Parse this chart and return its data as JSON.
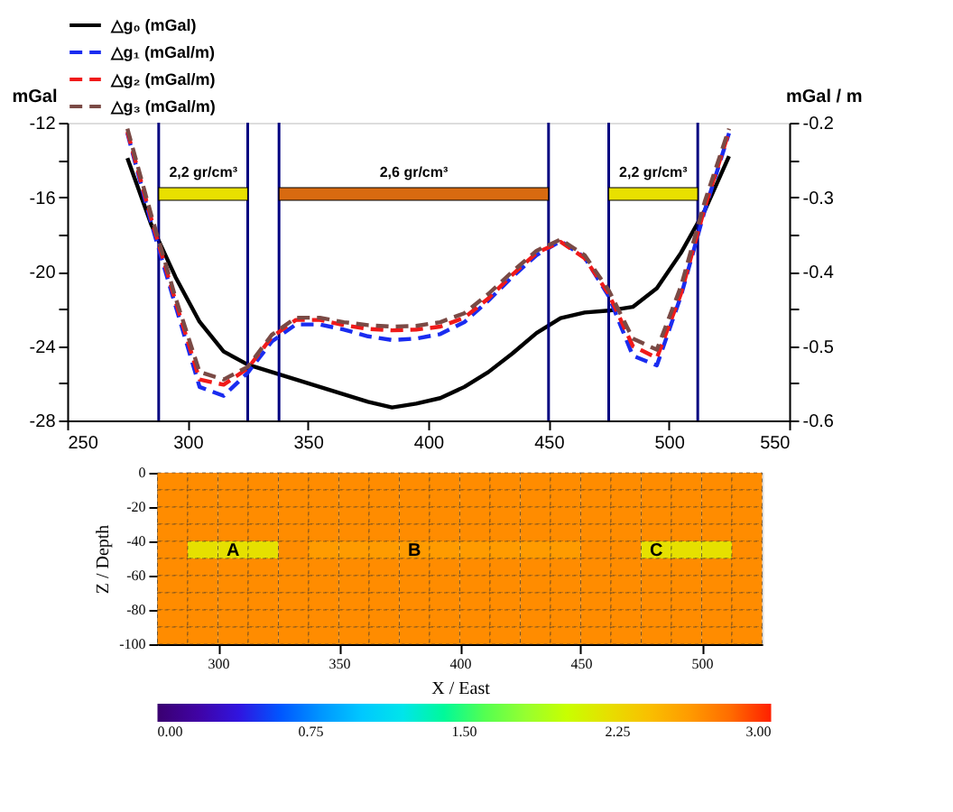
{
  "chart_data": [
    {
      "type": "line",
      "ylabel": "mGal",
      "y2label": "mGal / m",
      "legend": "top",
      "grid": false,
      "xlim": [
        250,
        550
      ],
      "xticks": [
        250,
        300,
        350,
        400,
        450,
        500,
        550
      ],
      "ylim": [
        -28,
        -12
      ],
      "yticks": [
        -28,
        {
          "value": -26,
          "label": null
        },
        -24,
        {
          "value": -22,
          "label": null
        },
        -20,
        {
          "value": -18,
          "label": null
        },
        -16,
        {
          "value": -14,
          "label": null
        },
        -12
      ],
      "y2lim": [
        -0.6,
        -0.2
      ],
      "y2ticks": [
        -0.6,
        {
          "value": -0.55,
          "label": null
        },
        -0.5,
        {
          "value": -0.45,
          "label": null
        },
        -0.4,
        {
          "value": -0.35,
          "label": null
        },
        -0.3,
        {
          "value": -0.25,
          "label": null
        },
        -0.2
      ],
      "x": [
        275,
        285,
        295,
        305,
        315,
        325,
        335,
        345,
        355,
        365,
        375,
        385,
        395,
        405,
        415,
        425,
        435,
        445,
        455,
        465,
        475,
        485,
        495,
        505,
        515,
        525
      ],
      "series": [
        {
          "name": "△g₀ (mGal)",
          "color": "#000000",
          "line_style": "solid",
          "values": [
            -13.9,
            -17.5,
            -20.3,
            -22.7,
            -24.3,
            -25.0,
            -25.4,
            -25.8,
            -26.2,
            -26.6,
            -27.0,
            -27.3,
            -27.1,
            -26.8,
            -26.2,
            -25.4,
            -24.4,
            -23.3,
            -22.5,
            -22.2,
            -22.1,
            -21.9,
            -20.9,
            -19.0,
            -16.7,
            -13.8
          ]
        },
        {
          "name": "△g₁ (mGal/m)",
          "color": "#1a2cf0",
          "line_style": "dashed",
          "axis": "y2",
          "values": [
            -0.214,
            -0.336,
            -0.446,
            -0.555,
            -0.567,
            -0.536,
            -0.494,
            -0.471,
            -0.471,
            -0.478,
            -0.487,
            -0.492,
            -0.49,
            -0.484,
            -0.468,
            -0.439,
            -0.407,
            -0.378,
            -0.359,
            -0.381,
            -0.433,
            -0.513,
            -0.526,
            -0.433,
            -0.317,
            -0.214
          ]
        },
        {
          "name": "△g₂ (mGal/m)",
          "color": "#f01a1a",
          "line_style": "dashed",
          "axis": "y2",
          "values": [
            -0.212,
            -0.33,
            -0.44,
            -0.545,
            -0.552,
            -0.53,
            -0.488,
            -0.465,
            -0.465,
            -0.472,
            -0.477,
            -0.479,
            -0.478,
            -0.474,
            -0.462,
            -0.436,
            -0.404,
            -0.375,
            -0.36,
            -0.382,
            -0.43,
            -0.5,
            -0.516,
            -0.43,
            -0.313,
            -0.212
          ]
        },
        {
          "name": "△g₃ (mGal/m)",
          "color": "#7a4a45",
          "line_style": "dashed",
          "axis": "y2",
          "values": [
            -0.208,
            -0.325,
            -0.435,
            -0.535,
            -0.545,
            -0.528,
            -0.485,
            -0.462,
            -0.462,
            -0.468,
            -0.472,
            -0.474,
            -0.473,
            -0.468,
            -0.456,
            -0.43,
            -0.4,
            -0.372,
            -0.357,
            -0.378,
            -0.425,
            -0.49,
            -0.505,
            -0.42,
            -0.305,
            -0.208
          ]
        }
      ],
      "ref_lines": [
        {
          "axis": "x",
          "value": 288,
          "color": "#000080"
        },
        {
          "axis": "x",
          "value": 325,
          "color": "#000080"
        },
        {
          "axis": "x",
          "value": 338,
          "color": "#000080"
        },
        {
          "axis": "x",
          "value": 450,
          "color": "#000080"
        },
        {
          "axis": "x",
          "value": 475,
          "color": "#000080"
        },
        {
          "axis": "x",
          "value": 512,
          "color": "#000080"
        }
      ],
      "bands": [
        {
          "axis": "x",
          "from": 288,
          "to": 325,
          "label": "2,2 gr/cm³",
          "color": "#e8e000"
        },
        {
          "axis": "x",
          "from": 338,
          "to": 450,
          "label": "2,6 gr/cm³",
          "color": "#d86a10"
        },
        {
          "axis": "x",
          "from": 475,
          "to": 512,
          "label": "2,2 gr/cm³",
          "color": "#e8e000"
        }
      ]
    },
    {
      "type": "heatmap",
      "xlabel": "X / East",
      "ylabel": "Z / Depth",
      "xlim": [
        275,
        525
      ],
      "xticks": [
        300,
        350,
        400,
        450,
        500
      ],
      "ylim": [
        -100,
        0
      ],
      "yticks": [
        -100,
        -80,
        -60,
        -40,
        -20,
        0
      ],
      "x": [
        281.25,
        293.75,
        306.25,
        318.75,
        331.25,
        343.75,
        356.25,
        368.75,
        381.25,
        393.75,
        406.25,
        418.75,
        431.25,
        443.75,
        456.25,
        468.75,
        481.25,
        493.75,
        506.25,
        518.75
      ],
      "y": [
        -5,
        -15,
        -25,
        -35,
        -45,
        -55,
        -65,
        -75,
        -85,
        -95
      ],
      "cells": [
        [
          2.67,
          2.67,
          2.67,
          2.67,
          2.67,
          2.67,
          2.67,
          2.67,
          2.67,
          2.67,
          2.67,
          2.67,
          2.67,
          2.67,
          2.67,
          2.67,
          2.67,
          2.67,
          2.67,
          2.67
        ],
        [
          2.67,
          2.67,
          2.67,
          2.67,
          2.67,
          2.67,
          2.67,
          2.67,
          2.67,
          2.67,
          2.67,
          2.67,
          2.67,
          2.67,
          2.67,
          2.67,
          2.67,
          2.67,
          2.67,
          2.67
        ],
        [
          2.67,
          2.67,
          2.67,
          2.67,
          2.67,
          2.67,
          2.67,
          2.67,
          2.67,
          2.67,
          2.67,
          2.67,
          2.67,
          2.67,
          2.67,
          2.67,
          2.67,
          2.67,
          2.67,
          2.67
        ],
        [
          2.67,
          2.67,
          2.67,
          2.67,
          2.67,
          2.67,
          2.67,
          2.67,
          2.67,
          2.67,
          2.67,
          2.67,
          2.67,
          2.67,
          2.67,
          2.67,
          2.67,
          2.67,
          2.67,
          2.67
        ],
        [
          2.67,
          2.2,
          2.2,
          2.2,
          2.67,
          2.6,
          2.6,
          2.6,
          2.6,
          2.6,
          2.6,
          2.6,
          2.6,
          2.6,
          2.67,
          2.67,
          2.2,
          2.2,
          2.2,
          2.67
        ],
        [
          2.67,
          2.67,
          2.67,
          2.67,
          2.67,
          2.67,
          2.67,
          2.67,
          2.67,
          2.67,
          2.67,
          2.67,
          2.67,
          2.67,
          2.67,
          2.67,
          2.67,
          2.67,
          2.67,
          2.67
        ],
        [
          2.67,
          2.67,
          2.67,
          2.67,
          2.67,
          2.67,
          2.67,
          2.67,
          2.67,
          2.67,
          2.67,
          2.67,
          2.67,
          2.67,
          2.67,
          2.67,
          2.67,
          2.67,
          2.67,
          2.67
        ],
        [
          2.67,
          2.67,
          2.67,
          2.67,
          2.67,
          2.67,
          2.67,
          2.67,
          2.67,
          2.67,
          2.67,
          2.67,
          2.67,
          2.67,
          2.67,
          2.67,
          2.67,
          2.67,
          2.67,
          2.67
        ],
        [
          2.67,
          2.67,
          2.67,
          2.67,
          2.67,
          2.67,
          2.67,
          2.67,
          2.67,
          2.67,
          2.67,
          2.67,
          2.67,
          2.67,
          2.67,
          2.67,
          2.67,
          2.67,
          2.67,
          2.67
        ],
        [
          2.67,
          2.67,
          2.67,
          2.67,
          2.67,
          2.67,
          2.67,
          2.67,
          2.67,
          2.67,
          2.67,
          2.67,
          2.67,
          2.67,
          2.67,
          2.67,
          2.67,
          2.67,
          2.67,
          2.67
        ]
      ],
      "cell_labels": [
        [
          null,
          null,
          null,
          null,
          null,
          null,
          null,
          null,
          null,
          null,
          null,
          null,
          null,
          null,
          null,
          null,
          null,
          null,
          null,
          null
        ],
        [
          null,
          null,
          null,
          null,
          null,
          null,
          null,
          null,
          null,
          null,
          null,
          null,
          null,
          null,
          null,
          null,
          null,
          null,
          null,
          null
        ],
        [
          null,
          null,
          null,
          null,
          null,
          null,
          null,
          null,
          null,
          null,
          null,
          null,
          null,
          null,
          null,
          null,
          null,
          null,
          null,
          null
        ],
        [
          null,
          null,
          null,
          null,
          null,
          null,
          null,
          null,
          null,
          null,
          null,
          null,
          null,
          null,
          null,
          null,
          null,
          null,
          null,
          null
        ],
        [
          null,
          null,
          "A",
          null,
          null,
          null,
          null,
          null,
          "B",
          null,
          null,
          null,
          null,
          null,
          null,
          null,
          "C",
          null,
          null,
          null
        ],
        [
          null,
          null,
          null,
          null,
          null,
          null,
          null,
          null,
          null,
          null,
          null,
          null,
          null,
          null,
          null,
          null,
          null,
          null,
          null,
          null
        ],
        [
          null,
          null,
          null,
          null,
          null,
          null,
          null,
          null,
          null,
          null,
          null,
          null,
          null,
          null,
          null,
          null,
          null,
          null,
          null,
          null
        ],
        [
          null,
          null,
          null,
          null,
          null,
          null,
          null,
          null,
          null,
          null,
          null,
          null,
          null,
          null,
          null,
          null,
          null,
          null,
          null,
          null
        ],
        [
          null,
          null,
          null,
          null,
          null,
          null,
          null,
          null,
          null,
          null,
          null,
          null,
          null,
          null,
          null,
          null,
          null,
          null,
          null,
          null
        ],
        [
          null,
          null,
          null,
          null,
          null,
          null,
          null,
          null,
          null,
          null,
          null,
          null,
          null,
          null,
          null,
          null,
          null,
          null,
          null,
          null
        ]
      ],
      "clim": [
        0,
        3
      ],
      "cticks": [
        {
          "value": 0,
          "label": "0.00"
        },
        {
          "value": 0.75,
          "label": "0.75"
        },
        {
          "value": 1.5,
          "label": "1.50"
        },
        {
          "value": 2.25,
          "label": "2.25"
        },
        {
          "value": 3,
          "label": "3.00"
        }
      ]
    }
  ]
}
